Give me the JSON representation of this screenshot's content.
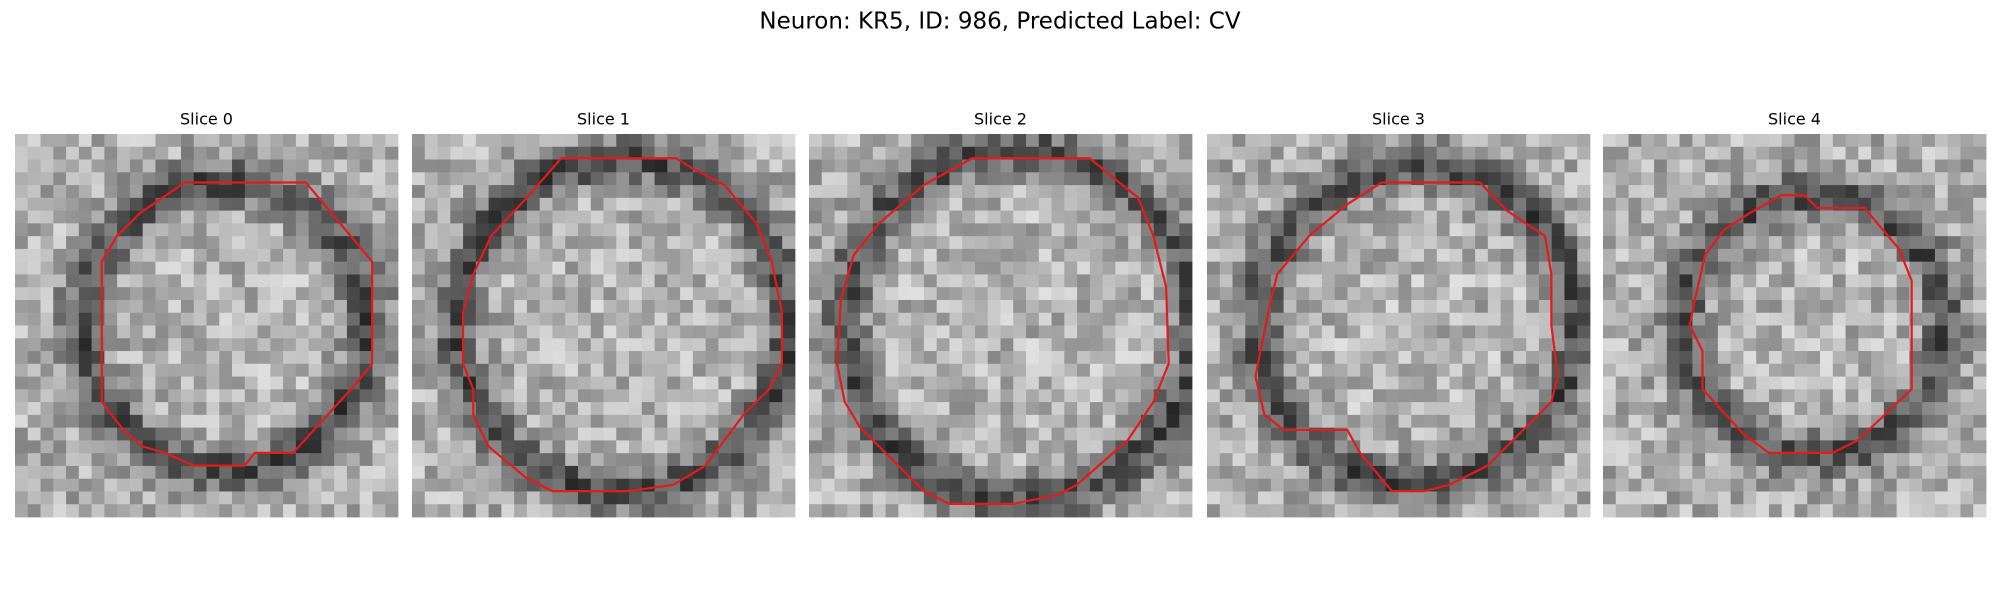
{
  "title": "Neuron: KR5, ID: 986, Predicted Label: CV",
  "panels": [
    {
      "title": "Slice 0"
    },
    {
      "title": "Slice 1"
    },
    {
      "title": "Slice 2"
    },
    {
      "title": "Slice 3"
    },
    {
      "title": "Slice 4"
    }
  ]
}
